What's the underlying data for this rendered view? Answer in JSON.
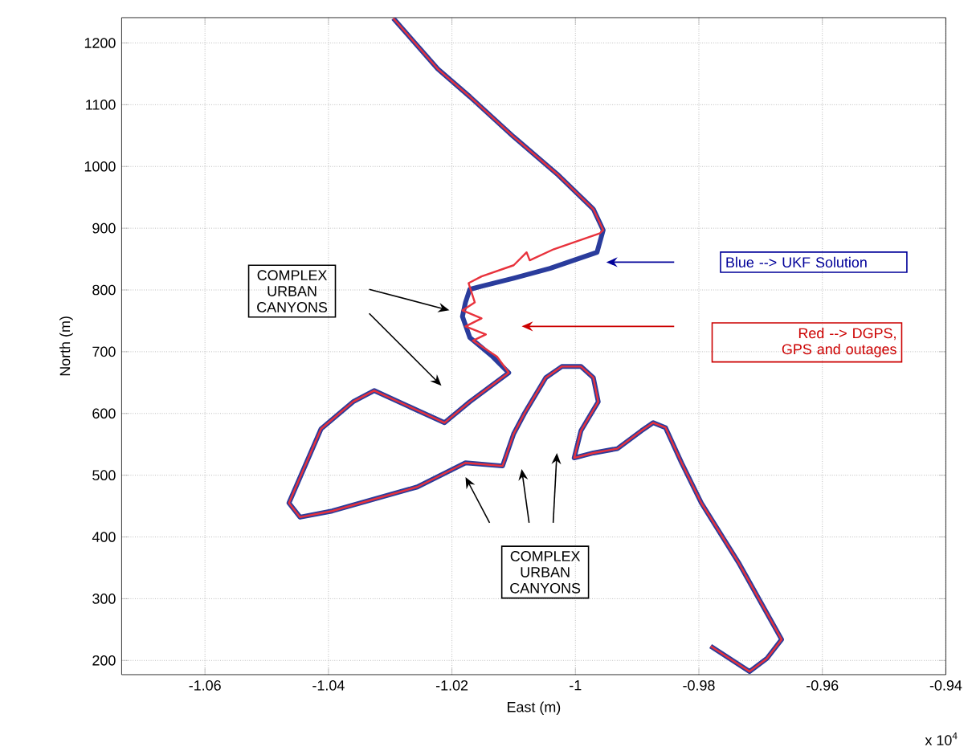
{
  "chart_data": {
    "type": "line",
    "xlabel": "East (m)",
    "ylabel": "North (m)",
    "xlim": [
      -1.0735,
      -0.94
    ],
    "ylim": [
      177,
      1241
    ],
    "xticks": [
      -1.06,
      -1.04,
      -1.02,
      -1,
      -0.98,
      -0.96,
      -0.94
    ],
    "yticks": [
      200,
      300,
      400,
      500,
      600,
      700,
      800,
      900,
      1000,
      1100,
      1200
    ],
    "grid": true,
    "series": [
      {
        "color": "#2a3c9c",
        "x": [
          -1.0295,
          -1.0223,
          -1.0171,
          -1.01,
          -1.003,
          -0.9971,
          -0.9955,
          -0.9965,
          -1.0041,
          -1.01,
          -1.0152,
          -1.0171,
          -1.0178,
          -1.0183,
          -1.0171,
          -1.0134,
          -1.0108,
          -1.0171,
          -1.0212,
          -1.0326,
          -1.036,
          -1.0412,
          -1.0464,
          -1.0446,
          -1.0394,
          -1.0256,
          -1.0178,
          -1.0118,
          -1.01,
          -1.0082,
          -1.0048,
          -1.0022,
          -0.9991,
          -0.9971,
          -0.9963,
          -0.9991,
          -1.0002,
          -0.9971,
          -0.9932,
          -0.9893,
          -0.9874,
          -0.9854,
          -0.9828,
          -0.9796,
          -0.9736,
          -0.9666,
          -0.969,
          -0.9718,
          -0.975,
          -0.9781
        ],
        "values": [
          1240,
          1158,
          1113,
          1048,
          988,
          931,
          897,
          861,
          835,
          819,
          806,
          801,
          780,
          757,
          723,
          692,
          666,
          619,
          585,
          637,
          619,
          575,
          455,
          432,
          442,
          481,
          520,
          515,
          567,
          601,
          658,
          676,
          676,
          658,
          619,
          572,
          528,
          536,
          543,
          572,
          585,
          577,
          520,
          455,
          359,
          234,
          203,
          182,
          203,
          223
        ]
      },
      {
        "color": "#e8323c",
        "x": [
          -1.0295,
          -1.0223,
          -1.0171,
          -1.01,
          -1.003,
          -0.9971,
          -0.9955,
          -0.996,
          -1.0035,
          -1.0074,
          -1.0079,
          -1.01,
          -1.0152,
          -1.0173,
          -1.0163,
          -1.0183,
          -1.0152,
          -1.0178,
          -1.0145,
          -1.0166,
          -1.0127,
          -1.0108,
          -1.0171,
          -1.0212,
          -1.0326,
          -1.036,
          -1.0412,
          -1.0464,
          -1.0446,
          -1.0394,
          -1.0256,
          -1.0178,
          -1.0118,
          -1.01,
          -1.0082,
          -1.0048,
          -1.0022,
          -0.9991,
          -0.9971,
          -0.9963,
          -0.9991,
          -1.0002,
          -0.9971,
          -0.9932,
          -0.9893,
          -0.9874,
          -0.9854,
          -0.9828,
          -0.9796,
          -0.9736,
          -0.9666,
          -0.969,
          -0.9718,
          -0.975,
          -0.9781
        ],
        "values": [
          1240,
          1158,
          1113,
          1048,
          988,
          931,
          897,
          892,
          866,
          848,
          861,
          840,
          822,
          811,
          780,
          767,
          754,
          741,
          728,
          718,
          692,
          666,
          619,
          585,
          637,
          619,
          575,
          455,
          432,
          442,
          481,
          520,
          515,
          567,
          601,
          658,
          676,
          676,
          658,
          619,
          572,
          528,
          536,
          543,
          572,
          585,
          577,
          520,
          455,
          359,
          234,
          203,
          182,
          203,
          223
        ]
      }
    ],
    "annotations": [
      "COMPLEX URBAN CANYONS",
      "COMPLEX URBAN CANYONS",
      "Blue --> UKF Solution",
      "Red --> DGPS, GPS and outages",
      "x 10$^{4}$"
    ]
  }
}
